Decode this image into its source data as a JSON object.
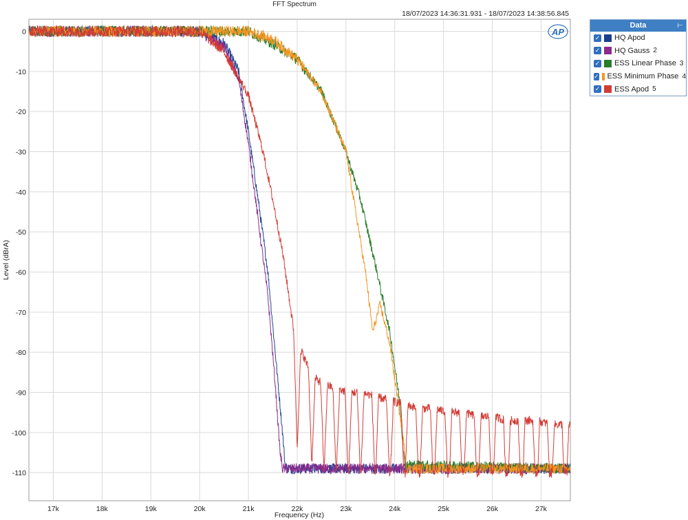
{
  "chart_data": {
    "type": "line",
    "title": "FFT Spectrum",
    "subtitle": "18/07/2023 14:36:31.931 - 18/07/2023 14:38:56.845",
    "xlabel": "Frequency (Hz)",
    "ylabel": "Level (dBrA)",
    "xlim": [
      16500,
      27600
    ],
    "ylim": [
      -117,
      3
    ],
    "x_ticks": [
      17000,
      18000,
      19000,
      20000,
      21000,
      22000,
      23000,
      24000,
      25000,
      26000,
      27000
    ],
    "x_tick_labels": [
      "17k",
      "18k",
      "19k",
      "20k",
      "21k",
      "22k",
      "23k",
      "24k",
      "25k",
      "26k",
      "27k"
    ],
    "y_ticks": [
      0,
      -10,
      -20,
      -30,
      -40,
      -50,
      -60,
      -70,
      -80,
      -90,
      -100,
      -110
    ],
    "y_tick_labels": [
      "0",
      "-10",
      "-20",
      "-30",
      "-40",
      "-50",
      "-60",
      "-70",
      "-80",
      "-90",
      "-100",
      "-110"
    ],
    "grid": true,
    "legend_position": "right-top",
    "series": [
      {
        "name": "HQ Apod",
        "color": "#1a3f8f",
        "points": [
          [
            16500,
            0
          ],
          [
            20000,
            0
          ],
          [
            20500,
            -3
          ],
          [
            20800,
            -10
          ],
          [
            21000,
            -25
          ],
          [
            21200,
            -42
          ],
          [
            21400,
            -60
          ],
          [
            21550,
            -80
          ],
          [
            21700,
            -100
          ],
          [
            21750,
            -108
          ],
          [
            21800,
            -109
          ],
          [
            27600,
            -109
          ]
        ]
      },
      {
        "name": "HQ Gauss",
        "number": "2",
        "color": "#8b2a8c",
        "points": [
          [
            16500,
            0
          ],
          [
            20000,
            0
          ],
          [
            20500,
            -4
          ],
          [
            20800,
            -12
          ],
          [
            21000,
            -28
          ],
          [
            21200,
            -47
          ],
          [
            21400,
            -66
          ],
          [
            21550,
            -88
          ],
          [
            21650,
            -105
          ],
          [
            21700,
            -109
          ],
          [
            27600,
            -109
          ]
        ]
      },
      {
        "name": "ESS Linear Phase",
        "number": "3",
        "color": "#2a7d2a",
        "points": [
          [
            16500,
            0
          ],
          [
            21000,
            0
          ],
          [
            21500,
            -3
          ],
          [
            22000,
            -7
          ],
          [
            22500,
            -15
          ],
          [
            23000,
            -30
          ],
          [
            23300,
            -42
          ],
          [
            23600,
            -58
          ],
          [
            23900,
            -75
          ],
          [
            24100,
            -92
          ],
          [
            24200,
            -108
          ],
          [
            27600,
            -109
          ]
        ]
      },
      {
        "name": "ESS Minimum Phase",
        "number": "4",
        "color": "#f39522",
        "points": [
          [
            16500,
            0
          ],
          [
            21000,
            0
          ],
          [
            21500,
            -2
          ],
          [
            22000,
            -7
          ],
          [
            22500,
            -15
          ],
          [
            23000,
            -30
          ],
          [
            23200,
            -45
          ],
          [
            23400,
            -60
          ],
          [
            23550,
            -75
          ],
          [
            23700,
            -68
          ],
          [
            23900,
            -78
          ],
          [
            24100,
            -95
          ],
          [
            24250,
            -109
          ],
          [
            27600,
            -109
          ]
        ]
      },
      {
        "name": "ESS Apod",
        "number": "5",
        "color": "#d33b35",
        "points": [
          [
            16500,
            0
          ],
          [
            20000,
            0
          ],
          [
            20500,
            -5
          ],
          [
            21000,
            -16
          ],
          [
            21300,
            -30
          ],
          [
            21500,
            -42
          ],
          [
            21700,
            -55
          ],
          [
            21900,
            -72
          ],
          [
            22000,
            -82
          ],
          [
            22100,
            -80
          ],
          [
            22300,
            -86
          ],
          [
            22550,
            -88
          ],
          [
            22800,
            -89
          ],
          [
            23050,
            -90
          ],
          [
            23300,
            -90
          ],
          [
            23600,
            -91
          ],
          [
            23900,
            -92
          ],
          [
            24200,
            -93
          ],
          [
            24500,
            -94
          ],
          [
            24800,
            -94
          ],
          [
            25100,
            -95
          ],
          [
            25400,
            -95
          ],
          [
            25700,
            -96
          ],
          [
            26000,
            -96
          ],
          [
            26300,
            -97
          ],
          [
            26600,
            -97
          ],
          [
            26900,
            -97
          ],
          [
            27200,
            -98
          ],
          [
            27600,
            -98
          ]
        ],
        "nulls": [
          22000,
          22300,
          22550,
          22800,
          23050,
          23300,
          23600,
          23900,
          24200,
          24500,
          24800,
          25100,
          25400,
          25700,
          26000,
          26300,
          26600,
          26900,
          27200,
          27500
        ]
      }
    ]
  },
  "legend": {
    "title": "Data",
    "items": [
      {
        "label": "HQ Apod",
        "number": "",
        "color": "#1a3f8f"
      },
      {
        "label": "HQ Gauss",
        "number": "2",
        "color": "#8b2a8c"
      },
      {
        "label": "ESS Linear Phase",
        "number": "3",
        "color": "#2a7d2a"
      },
      {
        "label": "ESS Minimum Phase",
        "number": "4",
        "color": "#f39522"
      },
      {
        "label": "ESS Apod",
        "number": "5",
        "color": "#d33b35"
      }
    ]
  },
  "logo_text": "AP"
}
